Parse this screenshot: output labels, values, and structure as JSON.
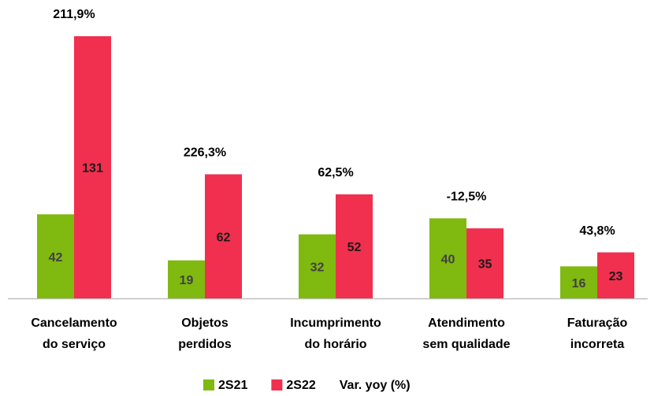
{
  "chart_data": {
    "type": "bar",
    "categories": [
      [
        "Cancelamento",
        "do serviço"
      ],
      [
        "Objetos",
        "perdidos"
      ],
      [
        "Incumprimento",
        "do horário"
      ],
      [
        "Atendimento",
        "sem qualidade"
      ],
      [
        "Faturação",
        "incorreta"
      ]
    ],
    "series": [
      {
        "name": "2S21",
        "color": "#80b910",
        "values": [
          42,
          19,
          32,
          40,
          16
        ]
      },
      {
        "name": "2S22",
        "color": "#f0304e",
        "values": [
          131,
          62,
          52,
          35,
          23
        ]
      },
      {
        "name": "Var. yoy (%)",
        "values": [
          211.9,
          226.3,
          62.5,
          -12.5,
          43.8
        ],
        "value_labels": [
          "211,9%",
          "226,3%",
          "62,5%",
          "-12,5%",
          "43,8%"
        ]
      }
    ],
    "ylim": [
      0,
      131
    ]
  }
}
